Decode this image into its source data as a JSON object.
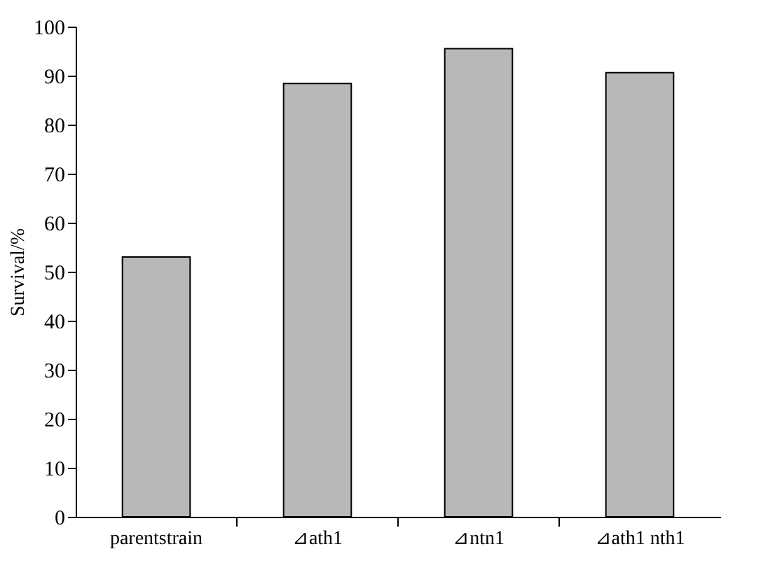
{
  "chart_data": {
    "type": "bar",
    "ylabel": "Survival/%",
    "categories": [
      "parentstrain",
      "⊿ath1",
      "⊿ntn1",
      "⊿ath1  nth1"
    ],
    "values": [
      53,
      88.4,
      95.5,
      90.6
    ],
    "color": "#b8b8b8",
    "ylim": [
      0,
      100
    ],
    "yticks": [
      0,
      10,
      20,
      30,
      40,
      50,
      60,
      70,
      80,
      90,
      100
    ],
    "grid": false
  }
}
